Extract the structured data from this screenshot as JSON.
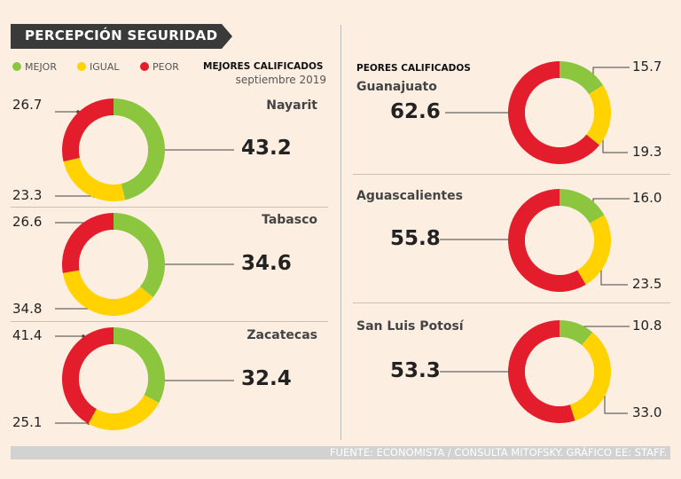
{
  "title": "PERCEPCIÓN SEGURIDAD",
  "legend": [
    {
      "label": "MEJOR",
      "color": "#8cc63f"
    },
    {
      "label": "IGUAL",
      "color": "#ffd200"
    },
    {
      "label": "PEOR",
      "color": "#e31d2b"
    }
  ],
  "best": {
    "heading": "MEJORES CALIFICADOS",
    "subtitle": "septiembre 2019"
  },
  "worst": {
    "heading": "PEORES CALIFICADOS"
  },
  "chart_data": {
    "type": "donut",
    "title": "PERCEPCIÓN SEGURIDAD",
    "categories": [
      "Mejor",
      "Igual",
      "Peor"
    ],
    "colors": [
      "#8cc63f",
      "#ffd200",
      "#e31d2b"
    ],
    "states": [
      {
        "name": "Nayarit",
        "group": "mejores",
        "mejor": "43.2",
        "igual": "23.3",
        "peor": "26.7"
      },
      {
        "name": "Tabasco",
        "group": "mejores",
        "mejor": "34.6",
        "igual": "34.8",
        "peor": "26.6"
      },
      {
        "name": "Zacatecas",
        "group": "mejores",
        "mejor": "32.4",
        "igual": "25.1",
        "peor": "41.4"
      },
      {
        "name": "Guanajuato",
        "group": "peores",
        "mejor": "15.7",
        "igual": "19.3",
        "peor": "62.6"
      },
      {
        "name": "Aguascalientes",
        "group": "peores",
        "mejor": "16.0",
        "igual": "23.5",
        "peor": "55.8"
      },
      {
        "name": "San Luis Potosí",
        "group": "peores",
        "mejor": "10.8",
        "igual": "33.0",
        "peor": "53.3"
      }
    ]
  },
  "footer": "FUENTE: ECONOMISTA / CONSULTA MITOFSKY. GRÁFICO EE: STAFF."
}
